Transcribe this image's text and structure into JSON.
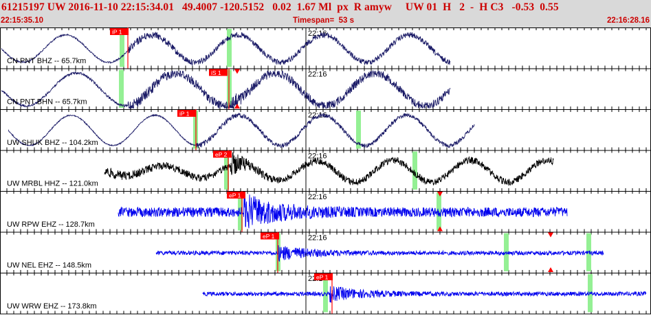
{
  "header": {
    "title": "61215197 UW 2016-11-10 22:15:34.01   49.4007 -120.5152   0.02  1.67 Ml  px  R amyw     UW 01  H   2  -  H C3   -0.53  0.55",
    "start_time": "22:15:35.10",
    "timespan": "Timespan=  53 s",
    "end_time": "22:16:28.16"
  },
  "colors": {
    "header_text": "#cc0000",
    "pick": "#ff0000",
    "marker_bar": "#88ee88"
  },
  "traces": [
    {
      "label": "CN PNT BHZ -- 65.7km",
      "time_label": "22:16",
      "pick_label": "iP 1",
      "color": "#1a1a66"
    },
    {
      "label": "CN PNT BHN -- 65.7km",
      "time_label": "22:16",
      "pick_label": "iS 1",
      "color": "#1a1a66"
    },
    {
      "label": "UW SHUK BHZ -- 104.2km",
      "time_label": "22:16",
      "pick_label": "iP 1",
      "color": "#1a1a66"
    },
    {
      "label": "UW MRBL HHZ -- 121.0km",
      "time_label": "22:16",
      "pick_label": "eP 2",
      "color": "#000000"
    },
    {
      "label": "UW RPW EHZ -- 128.7km",
      "time_label": "22:16",
      "pick_label": "eP 1",
      "color": "#0000ee"
    },
    {
      "label": "UW NEL EHZ -- 148.5km",
      "time_label": "22:16",
      "pick_label": "eP 1",
      "color": "#0000ee"
    },
    {
      "label": "UW WRW EHZ -- 173.8km",
      "time_label": "22:16",
      "pick_label": "eP 1",
      "color": "#0000ee"
    }
  ]
}
